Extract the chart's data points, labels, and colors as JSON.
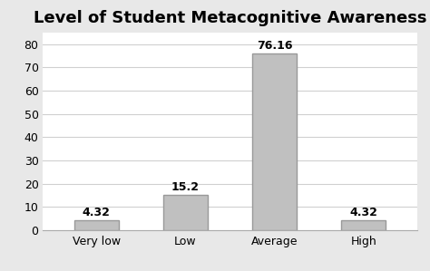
{
  "title": "Level of Student Metacognitive Awareness",
  "categories": [
    "Very low",
    "Low",
    "Average",
    "High"
  ],
  "values": [
    4.32,
    15.2,
    76.16,
    4.32
  ],
  "labels": [
    "4.32",
    "15.2",
    "76.16",
    "4.32"
  ],
  "bar_color": "#c0c0c0",
  "bar_edgecolor": "#999999",
  "ylim": [
    0,
    85
  ],
  "yticks": [
    0,
    10,
    20,
    30,
    40,
    50,
    60,
    70,
    80
  ],
  "background_color": "#ffffff",
  "figure_facecolor": "#e8e8e8",
  "title_fontsize": 13,
  "tick_fontsize": 9,
  "label_fontsize": 9,
  "bar_width": 0.5
}
